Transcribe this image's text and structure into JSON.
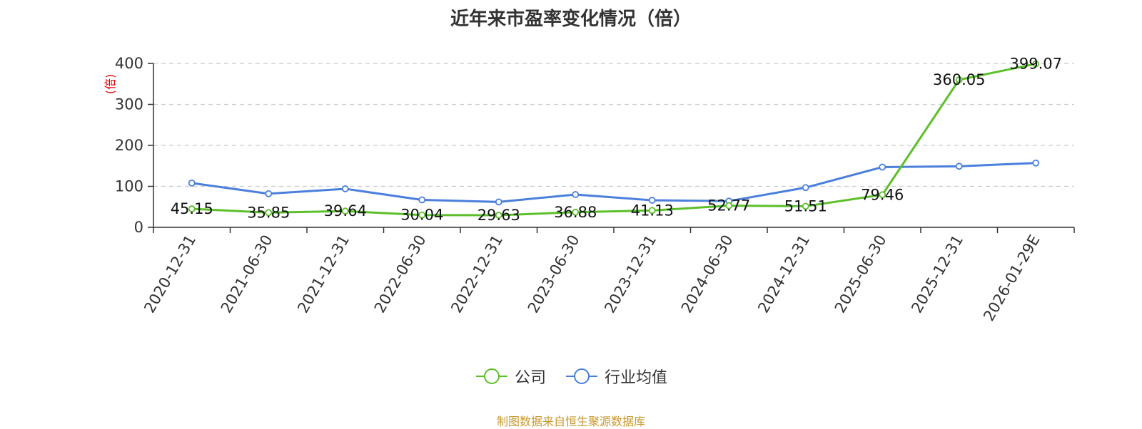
{
  "chart_data": {
    "type": "line",
    "title": "近年来市盈率变化情况（倍）",
    "ylabel": "(倍)",
    "ylim": [
      0,
      400
    ],
    "yticks": [
      0,
      100,
      200,
      300,
      400
    ],
    "grid": true,
    "legend_position": "bottom-center",
    "categories": [
      "2020-12-31",
      "2021-06-30",
      "2021-12-31",
      "2022-06-30",
      "2022-12-31",
      "2023-06-30",
      "2023-12-31",
      "2024-06-30",
      "2024-12-31",
      "2025-06-30",
      "2025-12-31",
      "2026-01-29E"
    ],
    "series": [
      {
        "name": "公司",
        "color": "#5bbf2a",
        "values": [
          45.15,
          35.85,
          39.64,
          30.04,
          29.63,
          36.88,
          41.13,
          52.77,
          51.51,
          79.46,
          360.05,
          399.07
        ],
        "labels": [
          "45.15",
          "35.85",
          "39.64",
          "30.04",
          "29.63",
          "36.88",
          "41.13",
          "52.77",
          "51.51",
          "79.46",
          "360.05",
          "399.07"
        ]
      },
      {
        "name": "行业均值",
        "color": "#4a7fdc",
        "values": [
          108,
          82,
          94,
          67,
          62,
          80,
          66,
          64,
          97,
          147,
          149,
          157
        ]
      }
    ]
  },
  "footer": {
    "source": "制图数据来自恒生聚源数据库"
  }
}
